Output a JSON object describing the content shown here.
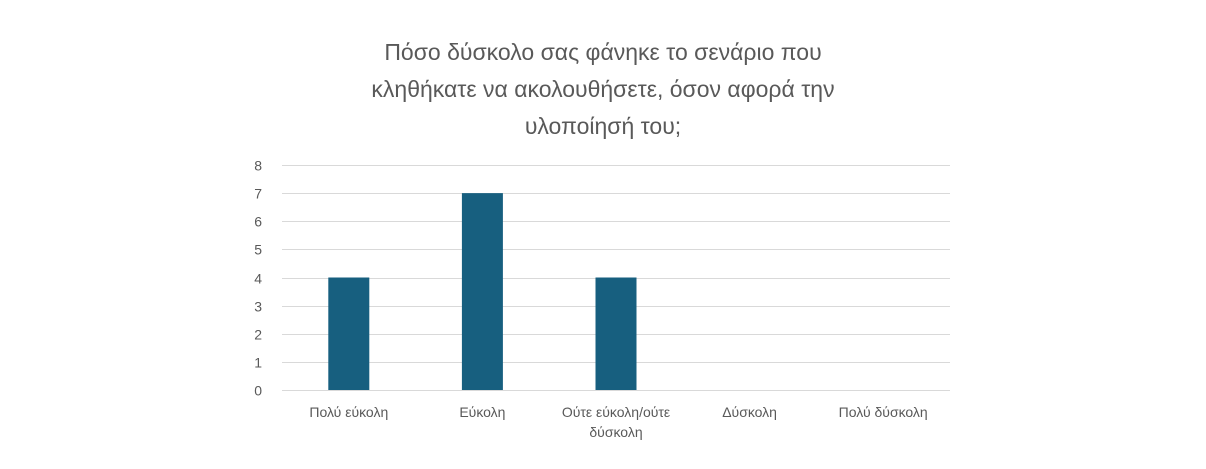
{
  "chart_data": {
    "type": "bar",
    "title_lines": [
      "Πόσο δύσκολο σας φάνηκε το σενάριο που",
      "κληθήκατε να ακολουθήσετε, όσον αφορά την",
      "υλοποίησή του;"
    ],
    "categories": [
      [
        "Πολύ εύκολη"
      ],
      [
        "Εύκολη"
      ],
      [
        "Ούτε εύκολη/ούτε",
        "δύσκολη"
      ],
      [
        "Δύσκολη"
      ],
      [
        "Πολύ δύσκολη"
      ]
    ],
    "values": [
      4,
      7,
      4,
      0,
      0
    ],
    "ylim": [
      0,
      8
    ],
    "yticks": [
      "0",
      "1",
      "2",
      "3",
      "4",
      "5",
      "6",
      "7",
      "8"
    ],
    "xlabel": "",
    "ylabel": "",
    "grid": true,
    "legend": "none",
    "bar_color": "#175f7f",
    "grid_color": "#d9d9d9",
    "text_color": "#595959"
  }
}
